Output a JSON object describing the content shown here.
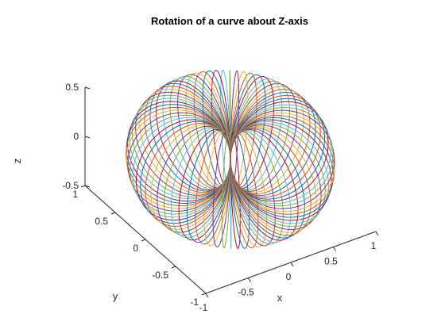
{
  "chart_data": {
    "type": "line",
    "subtype": "3d-surface-of-revolution",
    "title": "Rotation of a curve about Z-axis",
    "xlabel": "x",
    "ylabel": "y",
    "zlabel": "z",
    "xlim": [
      -1,
      1
    ],
    "ylim": [
      -1,
      1
    ],
    "zlim": [
      -0.5,
      0.5
    ],
    "x_ticks": [
      "-1",
      "-0.5",
      "0",
      "0.5",
      "1"
    ],
    "y_ticks": [
      "-1",
      "-0.5",
      "0",
      "0.5",
      "1"
    ],
    "z_ticks": [
      "-0.5",
      "0",
      "0.5"
    ],
    "x_tick_values": [
      -1,
      -0.5,
      0,
      0.5,
      1
    ],
    "y_tick_values": [
      -1,
      -0.5,
      0,
      0.5,
      1
    ],
    "z_tick_values": [
      -0.5,
      0,
      0.5
    ],
    "grid": false,
    "view": {
      "azimuth_deg": -37.5,
      "elevation_deg": 30
    },
    "curve": {
      "description": "circle of radius 0.5 centred at r = 0.5 in the r-z plane, rotated about the Z-axis",
      "center_r": 0.5,
      "radius": 0.5,
      "rotation_steps": 72,
      "rotation_range_deg": [
        0,
        360
      ]
    },
    "colors": [
      "#0072BD",
      "#D95319",
      "#EDB120",
      "#7E2F8E",
      "#77AC30",
      "#4DBEEE",
      "#A2142F"
    ]
  }
}
